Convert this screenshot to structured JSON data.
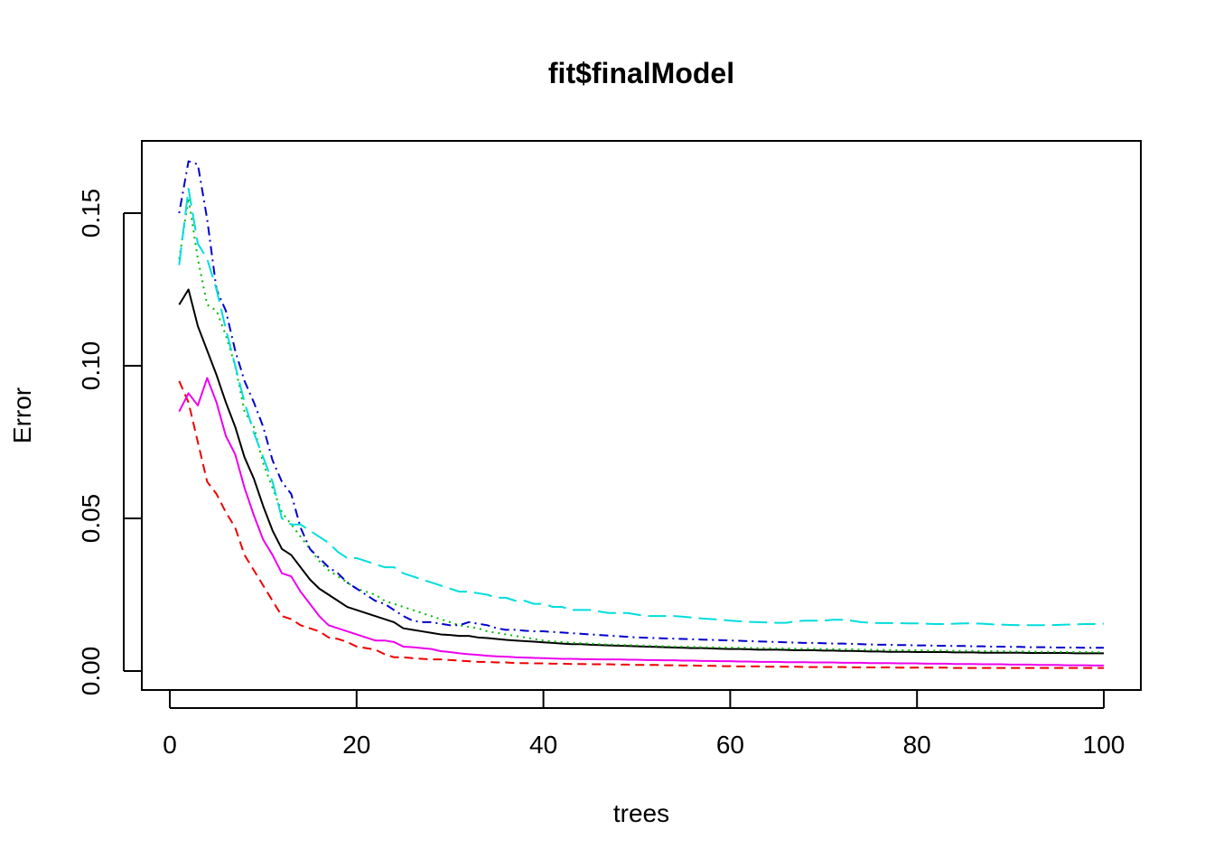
{
  "chart_data": {
    "type": "line",
    "title": "fit$finalModel",
    "xlabel": "trees",
    "ylabel": "Error",
    "xlim": [
      0,
      100
    ],
    "ylim": [
      0,
      0.17
    ],
    "xticks": [
      0,
      20,
      40,
      60,
      80,
      100
    ],
    "xtick_labels": [
      "0",
      "20",
      "40",
      "60",
      "80",
      "100"
    ],
    "yticks": [
      0.0,
      0.05,
      0.1,
      0.15
    ],
    "ytick_labels": [
      "0.00",
      "0.05",
      "0.10",
      "0.15"
    ],
    "grid": false,
    "legend": "none",
    "x": [
      1,
      2,
      3,
      4,
      5,
      6,
      7,
      8,
      9,
      10,
      11,
      12,
      13,
      14,
      15,
      16,
      17,
      18,
      19,
      20,
      21,
      22,
      23,
      24,
      25,
      26,
      27,
      28,
      29,
      30,
      31,
      32,
      33,
      34,
      35,
      36,
      37,
      38,
      39,
      40,
      41,
      42,
      43,
      44,
      45,
      46,
      47,
      48,
      49,
      50,
      51,
      52,
      53,
      54,
      55,
      56,
      57,
      58,
      59,
      60,
      61,
      62,
      63,
      64,
      65,
      66,
      67,
      68,
      69,
      70,
      71,
      72,
      73,
      74,
      75,
      76,
      77,
      78,
      79,
      80,
      81,
      82,
      83,
      84,
      85,
      86,
      87,
      88,
      89,
      90,
      91,
      92,
      93,
      94,
      95,
      96,
      97,
      98,
      99,
      100
    ],
    "series": [
      {
        "color": "#000000",
        "dash": "solid",
        "values": [
          0.12,
          0.125,
          0.113,
          0.105,
          0.097,
          0.088,
          0.08,
          0.07,
          0.063,
          0.054,
          0.046,
          0.04,
          0.038,
          0.034,
          0.03,
          0.027,
          0.025,
          0.023,
          0.021,
          0.02,
          0.019,
          0.018,
          0.017,
          0.016,
          0.014,
          0.0135,
          0.013,
          0.0125,
          0.012,
          0.0118,
          0.0115,
          0.0115,
          0.011,
          0.0108,
          0.0105,
          0.0102,
          0.01,
          0.0098,
          0.0096,
          0.0094,
          0.0092,
          0.009,
          0.0088,
          0.0088,
          0.0086,
          0.0085,
          0.0084,
          0.0083,
          0.0082,
          0.0081,
          0.008,
          0.0079,
          0.0078,
          0.0077,
          0.0076,
          0.0075,
          0.0075,
          0.0074,
          0.0073,
          0.0072,
          0.0072,
          0.0071,
          0.007,
          0.007,
          0.007,
          0.0069,
          0.0068,
          0.0068,
          0.0068,
          0.0067,
          0.0067,
          0.0066,
          0.0066,
          0.0065,
          0.0064,
          0.0064,
          0.0063,
          0.0063,
          0.0063,
          0.0062,
          0.0062,
          0.0062,
          0.0062,
          0.0061,
          0.0061,
          0.0061,
          0.006,
          0.006,
          0.006,
          0.006,
          0.006,
          0.0059,
          0.0059,
          0.0059,
          0.0059,
          0.0059,
          0.0058,
          0.0058,
          0.0058,
          0.0058
        ]
      },
      {
        "color": "#ee0000",
        "dash": "dashed",
        "values": [
          0.095,
          0.088,
          0.075,
          0.062,
          0.058,
          0.052,
          0.047,
          0.038,
          0.033,
          0.028,
          0.023,
          0.018,
          0.017,
          0.015,
          0.014,
          0.013,
          0.011,
          0.0105,
          0.0095,
          0.008,
          0.0075,
          0.007,
          0.0055,
          0.0045,
          0.0045,
          0.0042,
          0.004,
          0.0038,
          0.0038,
          0.0036,
          0.0034,
          0.0032,
          0.003,
          0.003,
          0.0028,
          0.0028,
          0.0026,
          0.0026,
          0.0025,
          0.0025,
          0.0024,
          0.0024,
          0.0023,
          0.0023,
          0.0022,
          0.0022,
          0.0022,
          0.0021,
          0.0021,
          0.002,
          0.002,
          0.002,
          0.0019,
          0.0019,
          0.0018,
          0.0018,
          0.0017,
          0.0017,
          0.0016,
          0.0016,
          0.0015,
          0.0015,
          0.0015,
          0.0014,
          0.0014,
          0.0014,
          0.0014,
          0.0013,
          0.0013,
          0.0013,
          0.0013,
          0.0013,
          0.0012,
          0.0012,
          0.0012,
          0.0012,
          0.0012,
          0.0011,
          0.0011,
          0.0011,
          0.0011,
          0.0011,
          0.0011,
          0.001,
          0.001,
          0.001,
          0.001,
          0.001,
          0.001,
          0.001,
          0.001,
          0.001,
          0.001,
          0.001,
          0.001,
          0.001,
          0.001,
          0.001,
          0.001,
          0.001
        ]
      },
      {
        "color": "#00bb00",
        "dash": "dotted",
        "values": [
          0.135,
          0.155,
          0.135,
          0.12,
          0.118,
          0.11,
          0.1,
          0.085,
          0.08,
          0.068,
          0.06,
          0.052,
          0.048,
          0.044,
          0.04,
          0.036,
          0.033,
          0.031,
          0.029,
          0.027,
          0.026,
          0.025,
          0.023,
          0.022,
          0.021,
          0.02,
          0.019,
          0.018,
          0.017,
          0.016,
          0.015,
          0.0145,
          0.014,
          0.013,
          0.0125,
          0.012,
          0.0115,
          0.011,
          0.0105,
          0.01,
          0.0097,
          0.0095,
          0.0093,
          0.0091,
          0.009,
          0.0088,
          0.0087,
          0.0086,
          0.0085,
          0.0084,
          0.0083,
          0.0082,
          0.0081,
          0.008,
          0.008,
          0.0079,
          0.0078,
          0.0078,
          0.0077,
          0.0077,
          0.0076,
          0.0076,
          0.0075,
          0.0075,
          0.0074,
          0.0074,
          0.0073,
          0.0073,
          0.0073,
          0.0072,
          0.0072,
          0.0071,
          0.0071,
          0.007,
          0.007,
          0.0069,
          0.0069,
          0.0068,
          0.0068,
          0.0068,
          0.0067,
          0.0067,
          0.0067,
          0.0066,
          0.0066,
          0.0066,
          0.0065,
          0.0065,
          0.0065,
          0.0064,
          0.0064,
          0.0064,
          0.0063,
          0.0063,
          0.0063,
          0.0062,
          0.0062,
          0.0062,
          0.0062,
          0.0061
        ]
      },
      {
        "color": "#0000cc",
        "dash": "dotdash",
        "values": [
          0.15,
          0.167,
          0.166,
          0.148,
          0.125,
          0.118,
          0.105,
          0.095,
          0.088,
          0.08,
          0.069,
          0.062,
          0.058,
          0.047,
          0.04,
          0.037,
          0.034,
          0.032,
          0.029,
          0.027,
          0.025,
          0.023,
          0.022,
          0.02,
          0.018,
          0.0165,
          0.016,
          0.016,
          0.0155,
          0.015,
          0.015,
          0.016,
          0.0155,
          0.015,
          0.014,
          0.0135,
          0.0135,
          0.0132,
          0.013,
          0.013,
          0.0128,
          0.0126,
          0.0124,
          0.0122,
          0.012,
          0.0118,
          0.0116,
          0.0114,
          0.0112,
          0.011,
          0.0109,
          0.0108,
          0.0107,
          0.0106,
          0.0105,
          0.0104,
          0.0103,
          0.0102,
          0.0101,
          0.01,
          0.0099,
          0.0098,
          0.0097,
          0.0096,
          0.0095,
          0.0094,
          0.0093,
          0.0092,
          0.0092,
          0.0091,
          0.009,
          0.009,
          0.0089,
          0.0088,
          0.0087,
          0.0086,
          0.0086,
          0.0085,
          0.0085,
          0.0084,
          0.0084,
          0.0083,
          0.0083,
          0.0082,
          0.0082,
          0.0081,
          0.0081,
          0.008,
          0.008,
          0.0079,
          0.0079,
          0.0078,
          0.0078,
          0.0078,
          0.0077,
          0.0077,
          0.0077,
          0.0076,
          0.0076,
          0.0076
        ]
      },
      {
        "color": "#00dddd",
        "dash": "longdash",
        "values": [
          0.133,
          0.158,
          0.14,
          0.135,
          0.125,
          0.112,
          0.1,
          0.088,
          0.078,
          0.07,
          0.062,
          0.05,
          0.048,
          0.048,
          0.046,
          0.044,
          0.042,
          0.039,
          0.037,
          0.037,
          0.036,
          0.035,
          0.034,
          0.034,
          0.032,
          0.031,
          0.03,
          0.029,
          0.028,
          0.027,
          0.026,
          0.026,
          0.0255,
          0.025,
          0.024,
          0.024,
          0.023,
          0.023,
          0.022,
          0.022,
          0.021,
          0.021,
          0.02,
          0.02,
          0.02,
          0.0195,
          0.019,
          0.019,
          0.019,
          0.0185,
          0.018,
          0.018,
          0.018,
          0.018,
          0.0178,
          0.0175,
          0.0172,
          0.017,
          0.0168,
          0.0165,
          0.0163,
          0.0161,
          0.016,
          0.0159,
          0.0158,
          0.0158,
          0.0163,
          0.0165,
          0.0165,
          0.0165,
          0.0168,
          0.0168,
          0.0165,
          0.016,
          0.0158,
          0.0157,
          0.0157,
          0.0157,
          0.0156,
          0.0156,
          0.0155,
          0.0154,
          0.0154,
          0.0155,
          0.0156,
          0.0156,
          0.0155,
          0.0153,
          0.0152,
          0.0151,
          0.015,
          0.015,
          0.015,
          0.015,
          0.0151,
          0.0152,
          0.0153,
          0.0154,
          0.0154,
          0.0155
        ]
      },
      {
        "color": "#ee00ee",
        "dash": "solid",
        "values": [
          0.085,
          0.091,
          0.087,
          0.096,
          0.088,
          0.077,
          0.071,
          0.06,
          0.051,
          0.043,
          0.038,
          0.032,
          0.031,
          0.026,
          0.022,
          0.018,
          0.015,
          0.014,
          0.013,
          0.012,
          0.011,
          0.01,
          0.01,
          0.0095,
          0.008,
          0.0078,
          0.0075,
          0.0072,
          0.0065,
          0.0062,
          0.0058,
          0.0055,
          0.0053,
          0.005,
          0.0048,
          0.0047,
          0.0045,
          0.0044,
          0.0043,
          0.0042,
          0.0041,
          0.004,
          0.004,
          0.0039,
          0.0039,
          0.0038,
          0.0038,
          0.0038,
          0.0037,
          0.0037,
          0.0036,
          0.0036,
          0.0035,
          0.0035,
          0.0034,
          0.0034,
          0.0033,
          0.0033,
          0.0032,
          0.0032,
          0.0031,
          0.0031,
          0.003,
          0.003,
          0.003,
          0.0029,
          0.0029,
          0.0029,
          0.0028,
          0.0028,
          0.0028,
          0.0027,
          0.0027,
          0.0027,
          0.0026,
          0.0026,
          0.0026,
          0.0025,
          0.0025,
          0.0025,
          0.0024,
          0.0024,
          0.0024,
          0.0023,
          0.0023,
          0.0023,
          0.0022,
          0.0022,
          0.0022,
          0.0021,
          0.0021,
          0.0021,
          0.002,
          0.002,
          0.002,
          0.0019,
          0.0019,
          0.0019,
          0.0018,
          0.0018
        ]
      }
    ]
  }
}
